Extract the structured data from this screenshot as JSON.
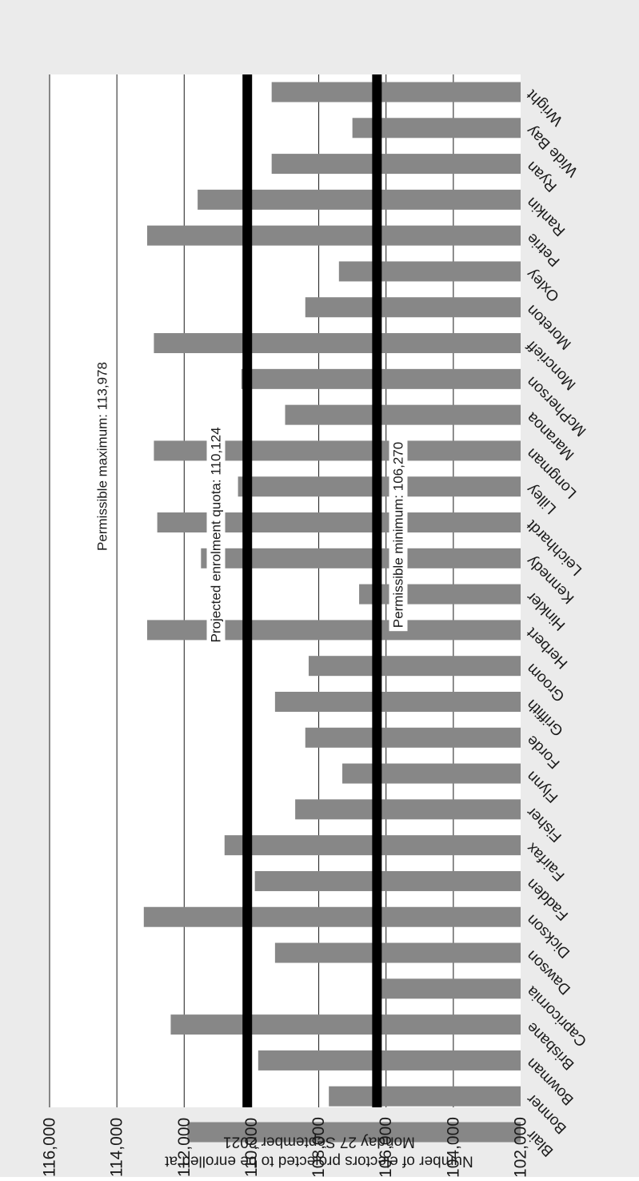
{
  "chart_data": {
    "type": "bar",
    "orientation": "horizontal",
    "categories": [
      "Blair",
      "Bonner",
      "Bowman",
      "Brisbane",
      "Capricornia",
      "Dawson",
      "Dickson",
      "Fadden",
      "Fairfax",
      "Fisher",
      "Flynn",
      "Forde",
      "Griffith",
      "Groom",
      "Herbert",
      "Hinkler",
      "Kennedy",
      "Leichhardt",
      "Lilley",
      "Longman",
      "Maranoa",
      "McPherson",
      "Moncrieff",
      "Moreton",
      "Oxley",
      "Petrie",
      "Rankin",
      "Ryan",
      "Wide Bay",
      "Wright"
    ],
    "values": [
      111900,
      107700,
      109800,
      112400,
      106400,
      109300,
      113200,
      109900,
      110800,
      108700,
      107300,
      108400,
      109300,
      108300,
      113100,
      106800,
      111500,
      112800,
      110400,
      112900,
      109000,
      110300,
      112900,
      108400,
      107400,
      113100,
      111600,
      109400,
      107000,
      109400
    ],
    "ylabel": "Number of electors projected to be enrolled at Monday 27 September 2021",
    "ylim": [
      102000,
      116000
    ],
    "ticks": [
      102000,
      104000,
      106000,
      108000,
      110000,
      112000,
      114000,
      116000
    ],
    "tick_labels": [
      "102,000",
      "104,000",
      "106,000",
      "108,000",
      "110,000",
      "112,000",
      "114,000",
      "116,000"
    ],
    "grid": true,
    "rotation": "chart rotated 180 degrees",
    "reference_lines": [
      {
        "label": "Permissible maximum: 113,978",
        "value": 113978,
        "style": "none"
      },
      {
        "label": "Projected enrolment quota: 110,124",
        "value": 110124,
        "style": "thick"
      },
      {
        "label": "Permissible minimum: 106,270",
        "value": 106270,
        "style": "thick"
      }
    ],
    "colors": {
      "bar": "#878787",
      "reference": "#000000",
      "grid": "#1a1a1a",
      "background": "#ebebeb",
      "plot": "#ffffff"
    }
  }
}
